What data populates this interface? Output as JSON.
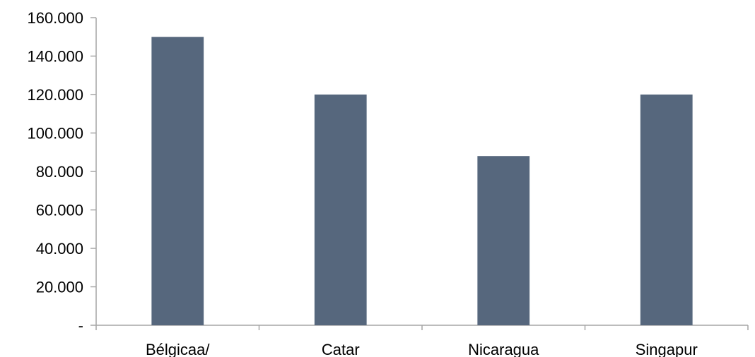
{
  "chart_data": {
    "type": "bar",
    "categories": [
      "Bélgicaa/",
      "Catar",
      "Nicaragua",
      "Singapur"
    ],
    "series": [
      {
        "values": [
          150000,
          120000,
          88000,
          120000
        ]
      }
    ],
    "yticks": [
      {
        "value": 0,
        "label": "-"
      },
      {
        "value": 20000,
        "label": "20.000"
      },
      {
        "value": 40000,
        "label": "40.000"
      },
      {
        "value": 60000,
        "label": "60.000"
      },
      {
        "value": 80000,
        "label": "80.000"
      },
      {
        "value": 100000,
        "label": "100.000"
      },
      {
        "value": 120000,
        "label": "120.000"
      },
      {
        "value": 140000,
        "label": "140.000"
      },
      {
        "value": 160000,
        "label": "160.000"
      }
    ],
    "ylim": [
      0,
      160000
    ],
    "grid": false,
    "legend": "none",
    "bar_color": "#56677d",
    "axis_color": "#a6a6a6"
  }
}
